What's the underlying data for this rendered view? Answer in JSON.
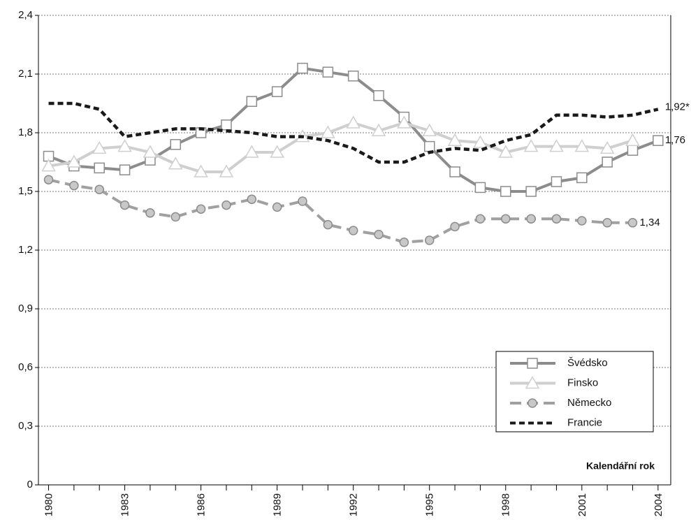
{
  "chart_data": {
    "type": "line",
    "x": [
      1980,
      1981,
      1982,
      1983,
      1984,
      1985,
      1986,
      1987,
      1988,
      1989,
      1990,
      1991,
      1992,
      1993,
      1994,
      1995,
      1996,
      1997,
      1998,
      1999,
      2000,
      2001,
      2002,
      2003,
      2004
    ],
    "xlim": [
      1979.6,
      2004.5
    ],
    "xticks": [
      1980,
      1983,
      1986,
      1989,
      1992,
      1995,
      1998,
      2001,
      2004
    ],
    "xminorticks": [
      1981,
      1982,
      1984,
      1985,
      1987,
      1988,
      1990,
      1991,
      1993,
      1994,
      1996,
      1997,
      1999,
      2000,
      2002,
      2003
    ],
    "ylim": [
      0,
      2.4
    ],
    "yticks": [
      0,
      {
        "value": 0.3,
        "label": "0,3"
      },
      {
        "value": 0.6,
        "label": "0,6"
      },
      {
        "value": 0.9,
        "label": "0,9"
      },
      {
        "value": 1.2,
        "label": "1,2"
      },
      {
        "value": 1.5,
        "label": "1,5"
      },
      {
        "value": 1.8,
        "label": "1,8"
      },
      {
        "value": 2.1,
        "label": "2,1"
      },
      {
        "value": 2.4,
        "label": "2,4"
      }
    ],
    "grid": true,
    "x_label": "Kalendářní rok",
    "legend": "lower right",
    "series": [
      {
        "name": "Švédsko",
        "color": "#8c8c8c",
        "marker": "square",
        "dash": "solid",
        "values": [
          1.68,
          1.63,
          1.62,
          1.61,
          1.66,
          1.74,
          1.8,
          1.84,
          1.96,
          2.01,
          2.13,
          2.11,
          2.09,
          1.99,
          1.88,
          1.73,
          1.6,
          1.52,
          1.5,
          1.5,
          1.55,
          1.57,
          1.65,
          1.71,
          1.76
        ],
        "end_label": "1,76"
      },
      {
        "name": "Finsko",
        "color": "#cfcfcf",
        "marker": "triangle",
        "dash": "solid",
        "values": [
          1.63,
          1.65,
          1.72,
          1.73,
          1.7,
          1.64,
          1.6,
          1.6,
          1.7,
          1.7,
          1.78,
          1.8,
          1.85,
          1.81,
          1.85,
          1.81,
          1.76,
          1.75,
          1.7,
          1.73,
          1.73,
          1.73,
          1.72,
          1.76,
          null
        ]
      },
      {
        "name": "Německo",
        "color": "#a0a0a0",
        "marker": "circle",
        "dash": "long",
        "values": [
          1.56,
          1.53,
          1.51,
          1.43,
          1.39,
          1.37,
          1.41,
          1.43,
          1.46,
          1.42,
          1.45,
          1.33,
          1.3,
          1.28,
          1.24,
          1.25,
          1.32,
          1.36,
          1.36,
          1.36,
          1.36,
          1.35,
          1.34,
          1.34,
          null
        ],
        "end_label": "1,34"
      },
      {
        "name": "Francie",
        "color": "#1a1a1a",
        "marker": "none",
        "dash": "short",
        "values": [
          1.95,
          1.95,
          1.92,
          1.78,
          1.8,
          1.82,
          1.82,
          1.81,
          1.8,
          1.78,
          1.78,
          1.76,
          1.72,
          1.65,
          1.65,
          1.7,
          1.72,
          1.71,
          1.76,
          1.79,
          1.89,
          1.89,
          1.88,
          1.89,
          1.92
        ],
        "end_label": "1,92*"
      }
    ]
  }
}
